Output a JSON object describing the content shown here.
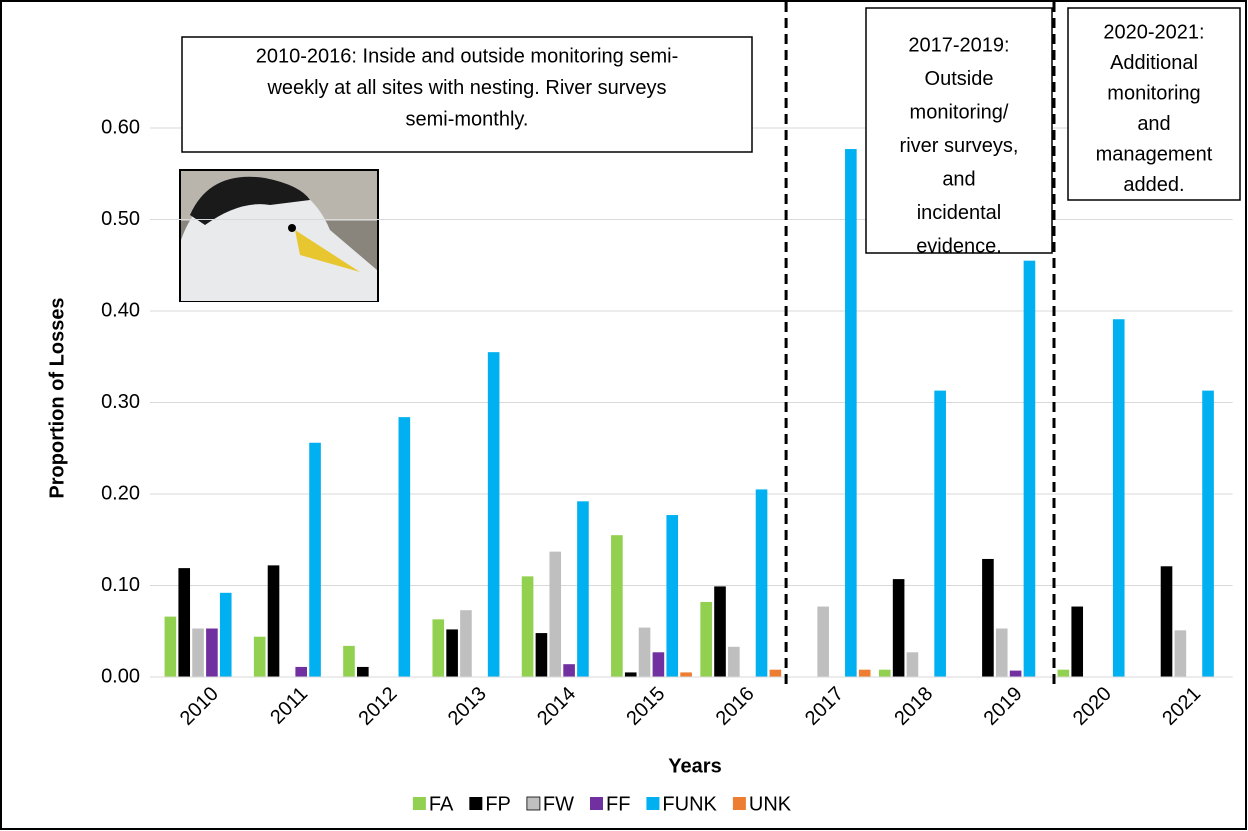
{
  "chart_data": {
    "type": "bar",
    "x_label": "Years",
    "y_label": "Proportion of Losses",
    "categories": [
      "2010",
      "2011",
      "2012",
      "2013",
      "2014",
      "2015",
      "2016",
      "2017",
      "2018",
      "2019",
      "2020",
      "2021"
    ],
    "series": [
      {
        "name": "FA",
        "color": "#92d050",
        "values": [
          0.066,
          0.044,
          0.034,
          0.063,
          0.11,
          0.155,
          0.082,
          0,
          0.008,
          0,
          0.008,
          0
        ]
      },
      {
        "name": "FP",
        "color": "#000000",
        "values": [
          0.119,
          0.122,
          0.011,
          0.052,
          0.048,
          0.005,
          0.099,
          0,
          0.107,
          0.129,
          0.077,
          0.121
        ]
      },
      {
        "name": "FW",
        "color": "#bfbfbf",
        "values": [
          0.053,
          0,
          0,
          0.073,
          0.137,
          0.054,
          0.033,
          0.077,
          0.027,
          0.053,
          0,
          0.051
        ]
      },
      {
        "name": "FF",
        "color": "#7030a0",
        "values": [
          0.053,
          0.011,
          0,
          0,
          0.014,
          0.027,
          0,
          0,
          0,
          0.007,
          0,
          0
        ]
      },
      {
        "name": "FUNK",
        "color": "#00b0f0",
        "values": [
          0.092,
          0.256,
          0.284,
          0.355,
          0.192,
          0.177,
          0.205,
          0.577,
          0.313,
          0.455,
          0.391,
          0.313
        ]
      },
      {
        "name": "UNK",
        "color": "#ed7d31",
        "values": [
          0,
          0,
          0,
          0,
          0,
          0.005,
          0.008,
          0.008,
          0,
          0,
          0,
          0
        ]
      }
    ],
    "ylim": [
      0,
      0.7
    ],
    "yticks": [
      {
        "value": 0,
        "label": "0.00"
      },
      {
        "value": 0.1,
        "label": "0.10"
      },
      {
        "value": 0.2,
        "label": "0.20"
      },
      {
        "value": 0.3,
        "label": "0.30"
      },
      {
        "value": 0.4,
        "label": "0.40"
      },
      {
        "value": 0.5,
        "label": "0.50"
      },
      {
        "value": 0.6,
        "label": "0.60"
      }
    ],
    "grid": true,
    "legend": "bottom",
    "annotations": [
      {
        "lines": [
          "2010-2016: Inside and outside monitoring semi-",
          "weekly at all sites with nesting. River surveys",
          "semi-monthly."
        ]
      },
      {
        "lines": [
          "2017-2019:",
          "Outside",
          "monitoring/",
          "river surveys,",
          "and",
          "incidental",
          "evidence."
        ]
      },
      {
        "lines": [
          "2020-2021:",
          "Additional",
          "monitoring",
          "and",
          "management",
          "added."
        ]
      }
    ]
  }
}
